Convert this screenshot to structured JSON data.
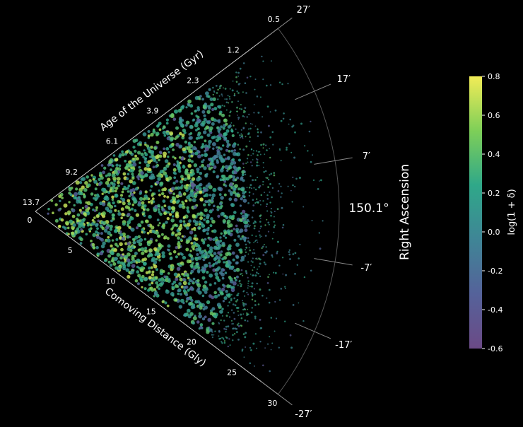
{
  "chart_data": {
    "type": "scatter",
    "projection": "polar-wedge",
    "ra_center_label": "150.1°",
    "ra_title": "Right Ascension",
    "ra_ticks": [
      "27′",
      "17′",
      "7′",
      "-7′",
      "-17′",
      "-27′"
    ],
    "ra_tick_values_arcmin": [
      27,
      17,
      7,
      -7,
      -17,
      -27
    ],
    "age_axis": {
      "label": "Age of the Universe (Gyr)",
      "ticks": [
        "13.7",
        "9.2",
        "6.1",
        "3.9",
        "2.3",
        "1.2",
        "0.5"
      ],
      "tick_distance_gly": [
        0,
        5,
        10,
        15,
        20,
        25,
        30
      ]
    },
    "distance_axis": {
      "label": "Comoving Distance (Gly)",
      "ticks": [
        "0",
        "5",
        "10",
        "15",
        "20",
        "25",
        "30"
      ],
      "range": [
        0,
        30
      ]
    },
    "colorbar": {
      "label": "log(1 + δ)",
      "colormap": "viridis",
      "range": [
        -0.6,
        0.8
      ],
      "ticks": [
        "0.8",
        "0.6",
        "0.4",
        "0.2",
        "0.0",
        "-0.2",
        "-0.4",
        "-0.6"
      ]
    },
    "colors": {
      "background": "#000000",
      "axis": "#cccccc",
      "arc": "#555555"
    }
  }
}
